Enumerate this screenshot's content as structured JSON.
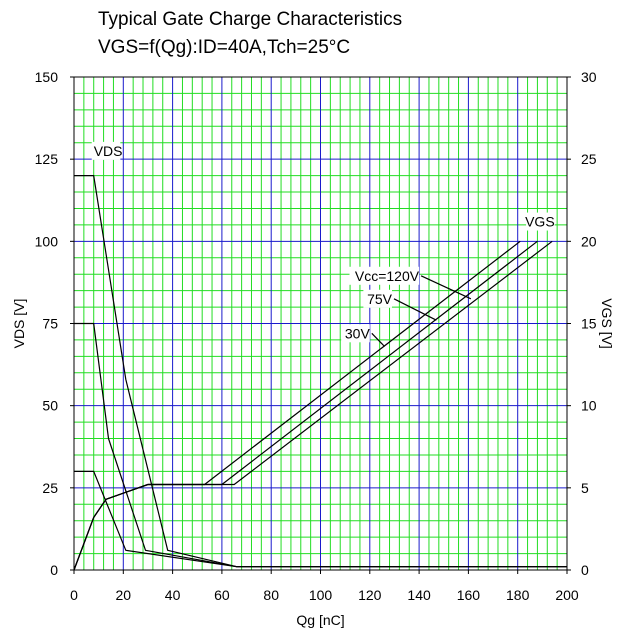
{
  "chart_data": {
    "type": "line",
    "title": [
      "Typical Gate Charge Characteristics",
      "VGS=f(Qg):ID=40A,Tch=25°C"
    ],
    "xlabel": "Qg [nC]",
    "ylabel_left": "VDS [V]",
    "ylabel_right": "VGS [V]",
    "xlim": [
      0,
      200
    ],
    "ylim_left": [
      0,
      150
    ],
    "ylim_right": [
      0,
      30
    ],
    "x_ticks": [
      "0",
      "20",
      "40",
      "60",
      "80",
      "100",
      "120",
      "140",
      "160",
      "180",
      "200"
    ],
    "y_ticks_left": [
      "0",
      "25",
      "50",
      "75",
      "100",
      "125",
      "150"
    ],
    "y_ticks_right": [
      "0",
      "5",
      "10",
      "15",
      "20",
      "25",
      "30"
    ],
    "grid": true,
    "colors": {
      "major_grid": "#1a1acc",
      "minor_grid": "#22dd22",
      "curve": "#000000",
      "background": "#ffffff"
    },
    "series": [
      {
        "name": "Vcc=120V",
        "axis": "left",
        "x": [
          0,
          8,
          21,
          38,
          66,
          200
        ],
        "y": [
          120,
          120,
          58,
          6,
          1,
          1
        ]
      },
      {
        "name": "75V",
        "axis": "left",
        "x": [
          0,
          8,
          14,
          29,
          66,
          200
        ],
        "y": [
          75,
          75,
          40,
          6,
          1,
          1
        ]
      },
      {
        "name": "30V",
        "axis": "left",
        "x": [
          0,
          8,
          21,
          66,
          200
        ],
        "y": [
          30,
          30,
          6,
          1,
          1
        ]
      },
      {
        "name": "Vcc=120V",
        "axis": "right",
        "x": [
          0,
          8,
          13,
          30,
          65,
          194
        ],
        "y": [
          0,
          3.2,
          4.3,
          5.2,
          5.2,
          20
        ]
      },
      {
        "name": "75V",
        "axis": "right",
        "x": [
          0,
          8,
          13,
          30,
          60,
          188
        ],
        "y": [
          0,
          3.2,
          4.3,
          5.2,
          5.2,
          20
        ]
      },
      {
        "name": "30V",
        "axis": "right",
        "x": [
          0,
          8,
          13,
          30,
          53,
          181
        ],
        "y": [
          0,
          3.2,
          4.3,
          5.2,
          5.2,
          20
        ]
      }
    ],
    "annotations": [
      {
        "text": "VDS",
        "x": 8,
        "y": 126,
        "axis": "left",
        "anchor": "start"
      },
      {
        "text": "VGS",
        "x": 195,
        "y": 20.9,
        "axis": "right",
        "anchor": "end"
      },
      {
        "text": "Vcc=120V",
        "x": 140,
        "y": 17.6,
        "axis": "right",
        "anchor": "end",
        "leader_to": [
          161,
          16.5
        ]
      },
      {
        "text": "75V",
        "x": 129,
        "y": 16.2,
        "axis": "right",
        "anchor": "end",
        "leader_to": [
          147,
          15.2
        ]
      },
      {
        "text": "30V",
        "x": 120,
        "y": 14.1,
        "axis": "right",
        "anchor": "end",
        "leader_to": [
          126,
          13.6
        ]
      }
    ]
  }
}
